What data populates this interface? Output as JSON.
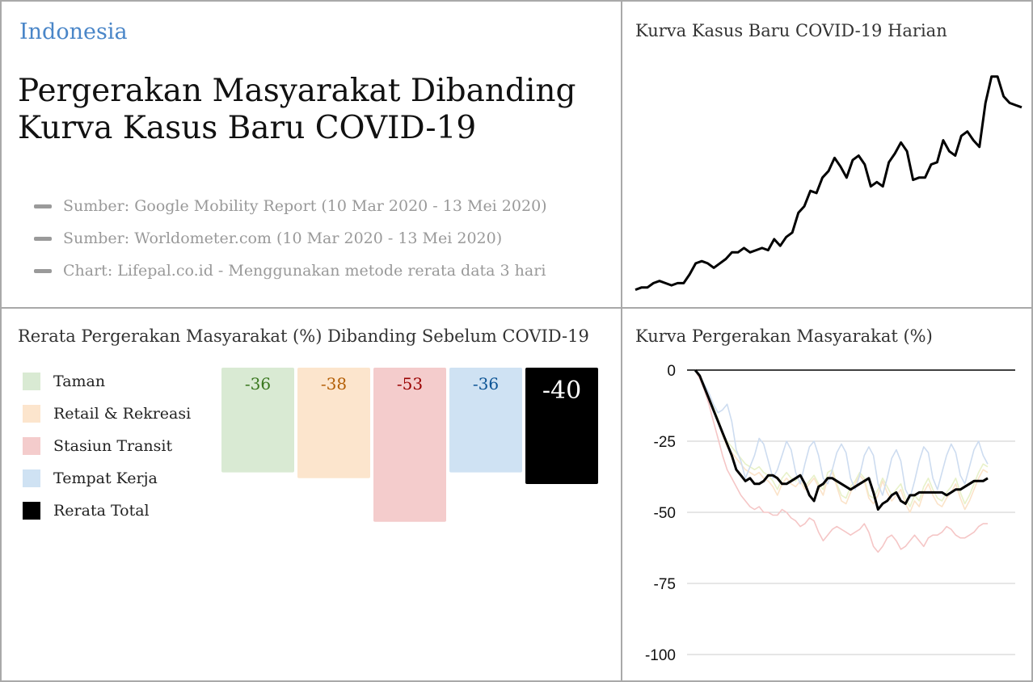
{
  "header": {
    "country": "Indonesia",
    "title_line1": "Pergerakan Masyarakat Dibanding",
    "title_line2": "Kurva Kasus Baru COVID-19"
  },
  "sources": [
    "Sumber: Google Mobility Report (10 Mar 2020 - 13 Mei 2020)",
    "Sumber: Worldometer.com (10 Mar 2020 - 13 Mei 2020)",
    "Chart: Lifepal.co.id - Menggunakan metode rerata data 3 hari"
  ],
  "chart_data": [
    {
      "id": "cases",
      "type": "line",
      "title": "Kurva Kasus Baru COVID-19 Harian",
      "series": [
        {
          "color": "#000000",
          "values": [
            2,
            3,
            3,
            5,
            6,
            5,
            4,
            5,
            5,
            9,
            14,
            15,
            14,
            12,
            14,
            16,
            19,
            19,
            21,
            19,
            20,
            21,
            20,
            25,
            22,
            26,
            28,
            37,
            40,
            47,
            46,
            53,
            56,
            62,
            58,
            53,
            61,
            63,
            59,
            49,
            51,
            49,
            60,
            64,
            69,
            65,
            52,
            53,
            53,
            59,
            60,
            70,
            65,
            63,
            72,
            74,
            70,
            67,
            87,
            99,
            99,
            90,
            87,
            86,
            85
          ]
        }
      ],
      "ylim": [
        0,
        100
      ]
    },
    {
      "id": "avg",
      "type": "bar",
      "title": "Rerata Pergerakan Masyarakat (%) Dibanding Sebelum COVID-19",
      "categories": [
        "Taman",
        "Retail & Rekreasi",
        "Stasiun Transit",
        "Tempat Kerja",
        "Rerata Total"
      ],
      "values": [
        -36,
        -38,
        -53,
        -36,
        -40
      ],
      "labels": [
        "-36",
        "-38",
        "-53",
        "-36",
        "-40"
      ],
      "colors": [
        "#d9ead3",
        "#fce5cd",
        "#f4cccc",
        "#cfe2f3",
        "#000000"
      ],
      "label_colors": [
        "#38761d",
        "#b45f06",
        "#990000",
        "#0b5394",
        "#ffffff"
      ]
    },
    {
      "id": "mobility",
      "type": "line",
      "title": "Kurva Pergerakan Masyarakat (%)",
      "yticks": [
        "0",
        "-25",
        "-50",
        "-75",
        "-100"
      ],
      "ylim": [
        -100,
        0
      ],
      "series": [
        {
          "name": "Taman",
          "color": "#e8f1c9",
          "values": [
            0,
            -2,
            -5,
            -9,
            -13,
            -17,
            -22,
            -25,
            -27,
            -29,
            -31,
            -33,
            -34,
            -35,
            -34,
            -36,
            -37,
            -39,
            -42,
            -38,
            -36,
            -38,
            -39,
            -37,
            -41,
            -39,
            -37,
            -40,
            -42,
            -36,
            -35,
            -40,
            -44,
            -45,
            -41,
            -39,
            -36,
            -38,
            -44,
            -45,
            -42,
            -38,
            -41,
            -44,
            -42,
            -40,
            -45,
            -48,
            -44,
            -46,
            -41,
            -38,
            -42,
            -45,
            -46,
            -43,
            -41,
            -38,
            -43,
            -47,
            -44,
            -40,
            -36,
            -33,
            -34
          ]
        },
        {
          "name": "Retail & Rekreasi",
          "color": "#fbe3c9",
          "values": [
            0,
            -2,
            -5,
            -9,
            -14,
            -18,
            -23,
            -27,
            -29,
            -31,
            -33,
            -35,
            -36,
            -37,
            -36,
            -38,
            -39,
            -41,
            -44,
            -40,
            -38,
            -40,
            -41,
            -39,
            -42,
            -40,
            -38,
            -41,
            -44,
            -38,
            -36,
            -41,
            -46,
            -47,
            -43,
            -40,
            -37,
            -39,
            -45,
            -47,
            -44,
            -39,
            -43,
            -46,
            -44,
            -42,
            -47,
            -50,
            -46,
            -48,
            -43,
            -40,
            -44,
            -47,
            -48,
            -45,
            -43,
            -40,
            -45,
            -49,
            -46,
            -42,
            -38,
            -35,
            -36
          ]
        },
        {
          "name": "Stasiun Transit",
          "color": "#f5c6c6",
          "values": [
            0,
            -3,
            -7,
            -12,
            -18,
            -24,
            -30,
            -35,
            -38,
            -41,
            -44,
            -46,
            -48,
            -49,
            -48,
            -50,
            -50,
            -51,
            -51,
            -49,
            -50,
            -52,
            -53,
            -55,
            -54,
            -52,
            -53,
            -57,
            -60,
            -58,
            -56,
            -55,
            -56,
            -57,
            -58,
            -57,
            -56,
            -54,
            -57,
            -62,
            -64,
            -62,
            -59,
            -58,
            -60,
            -63,
            -62,
            -60,
            -58,
            -60,
            -62,
            -59,
            -58,
            -58,
            -57,
            -55,
            -56,
            -58,
            -59,
            -59,
            -58,
            -57,
            -55,
            -54,
            -54
          ]
        },
        {
          "name": "Tempat Kerja",
          "color": "#cddcf0",
          "values": [
            0,
            -2,
            -5,
            -8,
            -12,
            -15,
            -14,
            -12,
            -18,
            -28,
            -32,
            -38,
            -34,
            -30,
            -24,
            -26,
            -32,
            -38,
            -35,
            -30,
            -25,
            -28,
            -36,
            -40,
            -33,
            -27,
            -25,
            -30,
            -38,
            -40,
            -35,
            -29,
            -26,
            -29,
            -38,
            -42,
            -37,
            -30,
            -27,
            -30,
            -40,
            -44,
            -38,
            -31,
            -28,
            -32,
            -42,
            -45,
            -39,
            -32,
            -27,
            -29,
            -38,
            -42,
            -36,
            -30,
            -26,
            -29,
            -37,
            -40,
            -34,
            -28,
            -25,
            -30,
            -33
          ]
        },
        {
          "name": "Rerata Total",
          "color": "#000000",
          "values": [
            0,
            -2,
            -6,
            -10,
            -14,
            -18,
            -22,
            -26,
            -30,
            -35,
            -37,
            -39,
            -38,
            -40,
            -40,
            -39,
            -37,
            -37,
            -38,
            -40,
            -40,
            -39,
            -38,
            -37,
            -40,
            -44,
            -46,
            -41,
            -40,
            -38,
            -38,
            -39,
            -40,
            -41,
            -42,
            -41,
            -40,
            -39,
            -38,
            -43,
            -49,
            -47,
            -46,
            -44,
            -43,
            -46,
            -47,
            -44,
            -44,
            -43,
            -43,
            -43,
            -43,
            -43,
            -43,
            -44,
            -43,
            -42,
            -42,
            -41,
            -40,
            -39,
            -39,
            -39,
            -38
          ]
        }
      ]
    }
  ]
}
